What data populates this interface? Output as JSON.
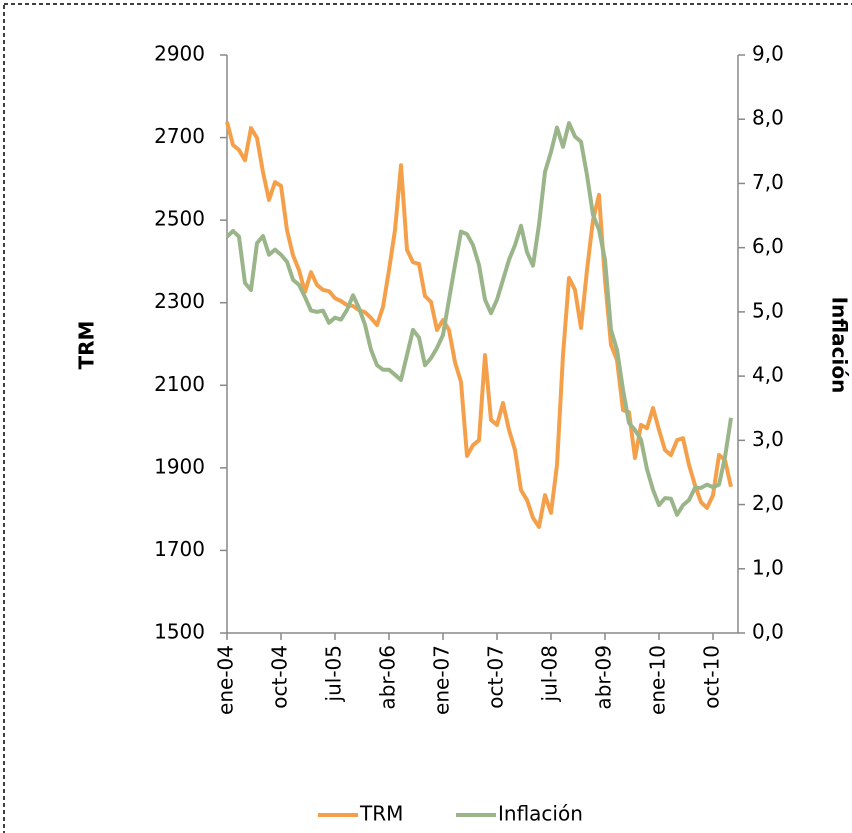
{
  "chart_data": {
    "type": "line",
    "y_label": "TRM",
    "y2_label": "Inflación",
    "categories": [
      "ene-04",
      null,
      null,
      null,
      null,
      null,
      null,
      null,
      null,
      "oct-04",
      null,
      null,
      null,
      null,
      null,
      null,
      null,
      null,
      "jul-05",
      null,
      null,
      null,
      null,
      null,
      null,
      null,
      null,
      "abr-06",
      null,
      null,
      null,
      null,
      null,
      null,
      null,
      null,
      "ene-07",
      null,
      null,
      null,
      null,
      null,
      null,
      null,
      null,
      "oct-07",
      null,
      null,
      null,
      null,
      null,
      null,
      null,
      null,
      "jul-08",
      null,
      null,
      null,
      null,
      null,
      null,
      null,
      null,
      "abr-09",
      null,
      null,
      null,
      null,
      null,
      null,
      null,
      null,
      "ene-10",
      null,
      null,
      null,
      null,
      null,
      null,
      null,
      null,
      "oct-10",
      null,
      null,
      null
    ],
    "series": [
      {
        "name": "TRM",
        "color": "#f4a04a",
        "axis": "y",
        "values": [
          2738,
          2682,
          2670,
          2645,
          2723,
          2699,
          2616,
          2549,
          2592,
          2583,
          2476,
          2415,
          2379,
          2326,
          2374,
          2343,
          2331,
          2328,
          2311,
          2304,
          2294,
          2292,
          2282,
          2277,
          2263,
          2246,
          2290,
          2379,
          2476,
          2633,
          2428,
          2398,
          2394,
          2316,
          2302,
          2234,
          2258,
          2234,
          2156,
          2108,
          1929,
          1955,
          1967,
          2173,
          2016,
          2004,
          2057,
          1992,
          1943,
          1846,
          1822,
          1779,
          1757,
          1834,
          1791,
          1907,
          2173,
          2360,
          2331,
          2239,
          2379,
          2500,
          2561,
          2355,
          2198,
          2161,
          2040,
          2035,
          1924,
          2004,
          1996,
          2045,
          1992,
          1943,
          1931,
          1967,
          1972,
          1907,
          1858,
          1817,
          1803,
          1834,
          1931,
          1919,
          1854
        ]
      },
      {
        "name": "Inflación",
        "color": "#9bb58a",
        "axis": "y2",
        "values": [
          6.17,
          6.26,
          6.17,
          5.45,
          5.34,
          6.07,
          6.18,
          5.89,
          5.97,
          5.89,
          5.78,
          5.5,
          5.42,
          5.23,
          5.02,
          5.0,
          5.02,
          4.83,
          4.91,
          4.88,
          5.03,
          5.26,
          5.06,
          4.8,
          4.41,
          4.17,
          4.1,
          4.1,
          4.02,
          3.94,
          4.33,
          4.72,
          4.6,
          4.17,
          4.28,
          4.44,
          4.64,
          5.19,
          5.73,
          6.25,
          6.21,
          6.04,
          5.73,
          5.19,
          4.98,
          5.19,
          5.5,
          5.81,
          6.04,
          6.34,
          5.93,
          5.72,
          6.36,
          7.18,
          7.49,
          7.87,
          7.57,
          7.94,
          7.73,
          7.65,
          7.13,
          6.51,
          6.28,
          5.81,
          4.72,
          4.41,
          3.79,
          3.27,
          3.16,
          3.01,
          2.55,
          2.23,
          1.99,
          2.1,
          2.09,
          1.84,
          1.99,
          2.07,
          2.26,
          2.26,
          2.31,
          2.27,
          2.31,
          2.74,
          3.35
        ]
      }
    ],
    "ylim": [
      1500,
      2900
    ],
    "yticks": [
      1500,
      1700,
      1900,
      2100,
      2300,
      2500,
      2700,
      2900
    ],
    "y2lim": [
      0,
      9
    ],
    "y2ticks": [
      {
        "value": 0,
        "label": "0,0"
      },
      {
        "value": 1,
        "label": "1,0"
      },
      {
        "value": 2,
        "label": "2,0"
      },
      {
        "value": 3,
        "label": "3,0"
      },
      {
        "value": 4,
        "label": "4,0"
      },
      {
        "value": 5,
        "label": "5,0"
      },
      {
        "value": 6,
        "label": "6,0"
      },
      {
        "value": 7,
        "label": "7,0"
      },
      {
        "value": 8,
        "label": "8,0"
      },
      {
        "value": 9,
        "label": "9,0"
      }
    ],
    "grid": false,
    "legend": "bottom"
  }
}
